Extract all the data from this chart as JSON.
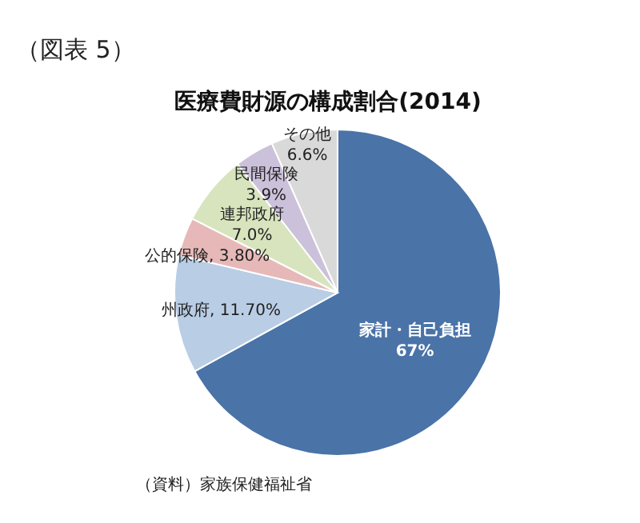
{
  "chart_data": {
    "type": "pie",
    "title": "医療費財源の構成割合(2014)",
    "annotations": [
      "（図表 5）",
      "（資料）家族保健福祉省"
    ],
    "categories": [
      "家計・自己負担",
      "州政府",
      "公的保険",
      "連邦政府",
      "民間保険",
      "その他"
    ],
    "values": [
      67,
      11.7,
      3.8,
      7.0,
      3.9,
      6.6
    ],
    "value_labels": [
      "67%",
      "11.70%",
      "3.80%",
      "7.0%",
      "3.9%",
      "6.6%"
    ],
    "colors": [
      "#4a73a8",
      "#b9cde5",
      "#e6b9b8",
      "#d7e4bd",
      "#ccc1da",
      "#d9d9d9"
    ]
  }
}
